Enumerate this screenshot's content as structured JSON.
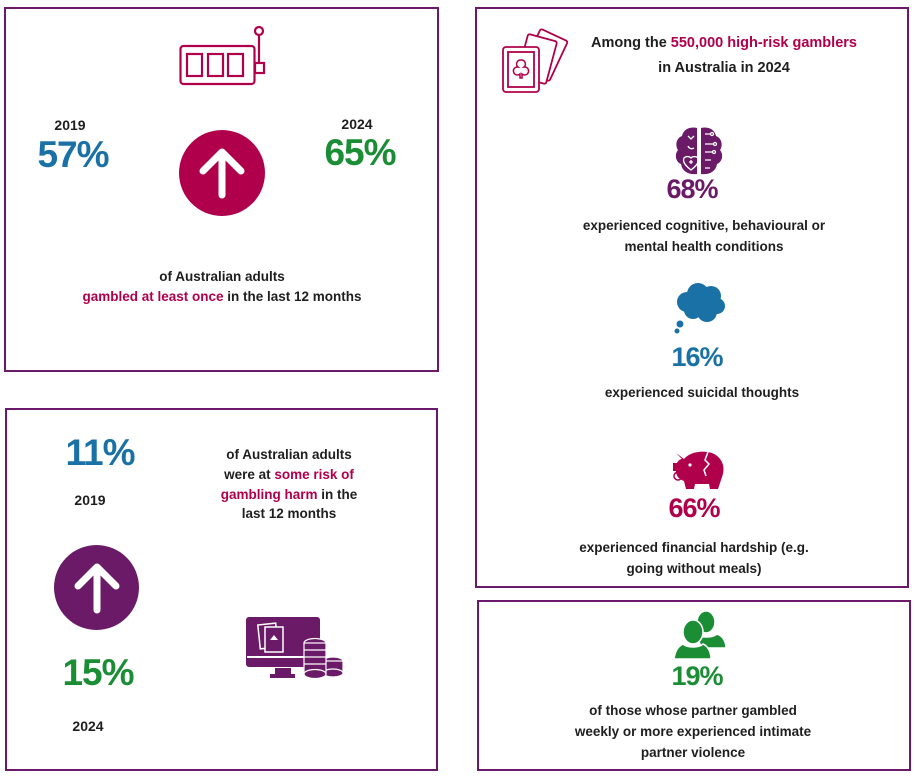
{
  "colors": {
    "border": "#6b1a6b",
    "blue": "#1a71a5",
    "green": "#1b8e35",
    "magenta": "#b0004c",
    "purple": "#6a1a66"
  },
  "participation": {
    "icon": "slot-machine-icon",
    "year_before": "2019",
    "value_before": "57%",
    "year_after": "2024",
    "value_after": "65%",
    "trend_icon": "arrow-up-icon",
    "line1": "of Australian adults",
    "line2_highlight": "gambled at least once",
    "line2_rest": " in the last 12 months"
  },
  "risk": {
    "value_before": "11%",
    "year_before": "2019",
    "trend_icon": "arrow-up-icon",
    "value_after": "15%",
    "year_after": "2024",
    "line1": "of Australian adults",
    "line2_plain": "were at ",
    "line2_highlight": "some risk of",
    "line3_highlight": "gambling harm",
    "line3_rest": " in the",
    "line4": "last 12 months",
    "icon": "online-gambling-icon"
  },
  "high_risk": {
    "icon": "playing-cards-icon",
    "heading_plain": "Among the ",
    "heading_highlight": "550,000 high-risk gamblers",
    "heading_line2": "in Australia in 2024",
    "stats": [
      {
        "icon": "brain-icon",
        "value": "68%",
        "line1": "experienced cognitive, behavioural or",
        "line2": "mental health conditions"
      },
      {
        "icon": "thought-cloud-icon",
        "value": "16%",
        "line1": "experienced suicidal thoughts"
      },
      {
        "icon": "broken-piggy-bank-icon",
        "value": "66%",
        "line1": "experienced financial hardship (e.g.",
        "line2": "going without meals)"
      }
    ]
  },
  "partner": {
    "icon": "people-icon",
    "value": "19%",
    "line1": "of those whose partner gambled",
    "line2": "weekly or more experienced intimate",
    "line3": "partner violence"
  }
}
